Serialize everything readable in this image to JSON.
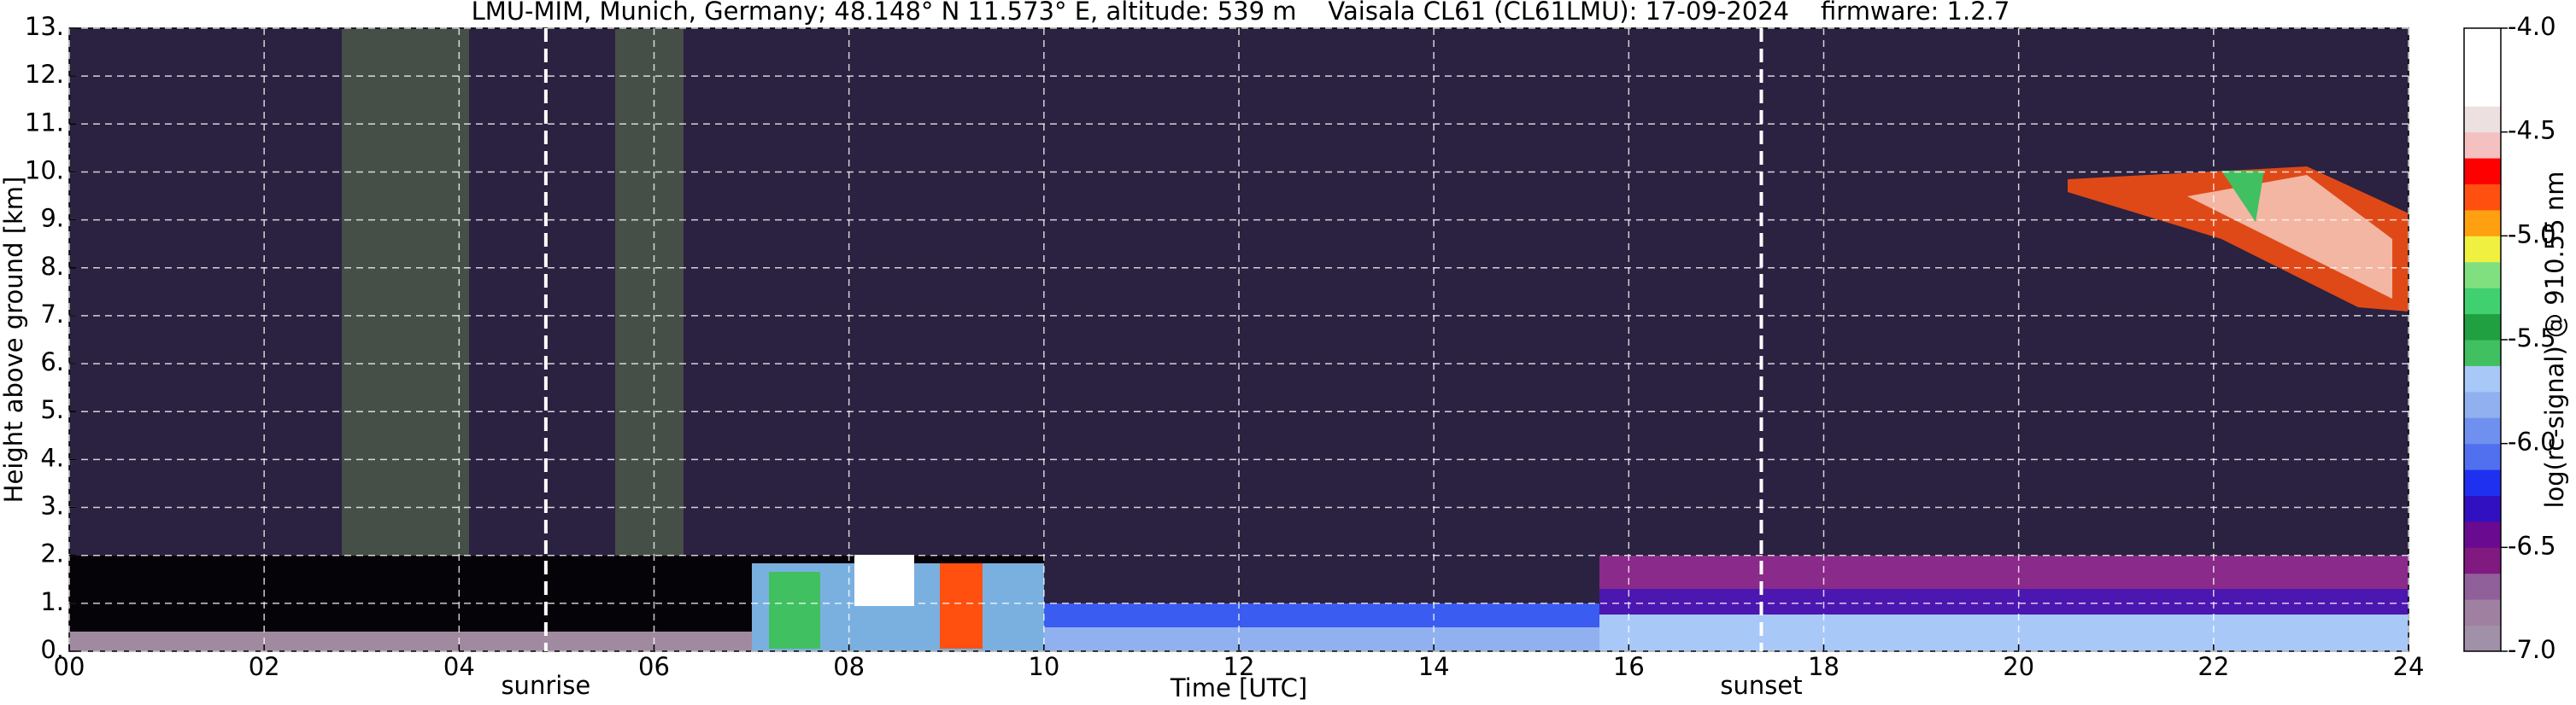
{
  "chart_data": {
    "type": "heatmap",
    "title": "LMU-MIM, Munich, Germany; 48.148° N 11.573° E, altitude: 539 m    Vaisala CL61 (CL61LMU): 17-09-2024    firmware: 1.2.7",
    "x_label": "Time [UTC]",
    "y_label": "Height above ground [km]",
    "xlim": [
      0,
      24
    ],
    "xticks": [
      {
        "value": 0,
        "label": "00"
      },
      {
        "value": 2,
        "label": "02"
      },
      {
        "value": 4,
        "label": "04"
      },
      {
        "value": 6,
        "label": "06"
      },
      {
        "value": 8,
        "label": "08"
      },
      10,
      12,
      14,
      16,
      18,
      20,
      22,
      24
    ],
    "ylim": [
      0,
      13
    ],
    "yticks": [
      {
        "value": 0,
        "label": "0."
      },
      {
        "value": 1,
        "label": "1."
      },
      {
        "value": 2,
        "label": "2."
      },
      {
        "value": 3,
        "label": "3."
      },
      {
        "value": 4,
        "label": "4."
      },
      {
        "value": 5,
        "label": "5."
      },
      {
        "value": 6,
        "label": "6."
      },
      {
        "value": 7,
        "label": "7."
      },
      {
        "value": 8,
        "label": "8."
      },
      {
        "value": 9,
        "label": "9."
      },
      {
        "value": 10,
        "label": "10."
      },
      {
        "value": 11,
        "label": "11."
      },
      {
        "value": 12,
        "label": "12."
      },
      {
        "value": 13,
        "label": "13."
      }
    ],
    "grid": true,
    "annotations": [
      {
        "text": "sunrise",
        "x": 4.89
      },
      {
        "text": "sunset",
        "x": 17.36
      }
    ],
    "colorbar": {
      "label": "log(rc-signal) @ 910.55 nm",
      "lim": [
        -7,
        -4
      ],
      "ticks": [
        {
          "value": -7,
          "label": "-7.0"
        },
        -6.5,
        {
          "value": -6,
          "label": "-6.0"
        },
        -5.5,
        {
          "value": -5,
          "label": "-5.0"
        },
        -4.5,
        {
          "value": -4,
          "label": "-4.0"
        }
      ],
      "colors": [
        "#a090a8",
        "#a080a0",
        "#90609a",
        "#801a80",
        "#6a0a90",
        "#3010c0",
        "#2030f0",
        "#5070f0",
        "#7090f0",
        "#90b0f0",
        "#a8c8f8",
        "#40c060",
        "#20a040",
        "#40d070",
        "#80e080",
        "#f0f040",
        "#ffa010",
        "#ff5010",
        "#ff0000",
        "#f4c0c0",
        "#ece0e0",
        "#ffffff",
        "#ffffff",
        "#ffffff"
      ]
    }
  }
}
